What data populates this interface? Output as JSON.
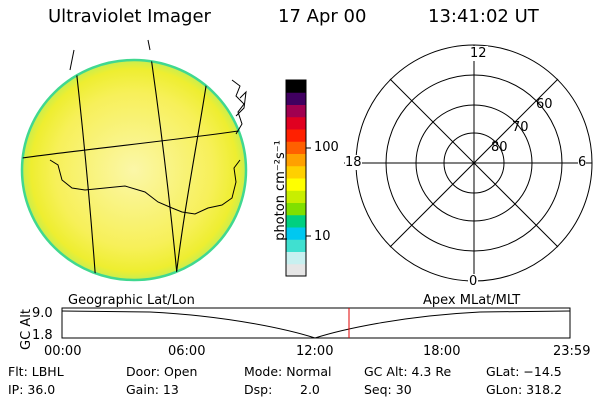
{
  "header": {
    "instrument": "Ultraviolet Imager",
    "date": "17 Apr 00",
    "time": "13:41:02 UT"
  },
  "colorbar": {
    "unit_label": "photon cm⁻²s⁻¹",
    "tick_100": "100",
    "tick_10": "10",
    "colors": [
      "#e6e6e6",
      "#c8f0f0",
      "#40e0d0",
      "#00c8f0",
      "#00d080",
      "#80e000",
      "#c8ee00",
      "#ffff00",
      "#ffd000",
      "#ffa000",
      "#ff6000",
      "#ff2000",
      "#e00020",
      "#a00050",
      "#400060",
      "#000000"
    ]
  },
  "polar": {
    "lat_labels": [
      "80",
      "70",
      "60"
    ],
    "mlt_labels": {
      "top": "12",
      "bottom": "0",
      "left": "18",
      "right": "6"
    }
  },
  "timeline": {
    "y_axis_label": "GC Alt",
    "y_max": "9.0",
    "y_min": "1.8",
    "left_title": "Geographic Lat/Lon",
    "right_title": "Apex MLat/MLT",
    "x_ticks": [
      "00:00",
      "06:00",
      "12:00",
      "18:00",
      "23:59"
    ],
    "marker_color": "#e00000"
  },
  "footer": {
    "filter": "Flt: LBHL",
    "ip": "IP: 36.0",
    "door": "Door: Open",
    "gain": "Gain: 13",
    "mode": "Mode: Normal",
    "dsp_key": "Dsp:",
    "dsp_val": "2.0",
    "gc_alt": "GC Alt: 4.3 Re",
    "seq": "Seq: 30",
    "glat": "GLat: −14.5",
    "glon": "GLon: 318.2"
  }
}
